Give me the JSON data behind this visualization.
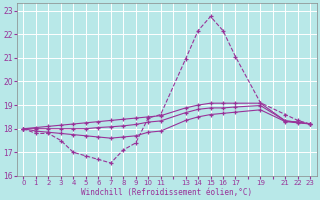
{
  "xlabel": "Windchill (Refroidissement éolien,°C)",
  "bg_color": "#b8e8e8",
  "grid_color": "#ffffff",
  "line_color": "#993399",
  "xlim": [
    -0.5,
    23.5
  ],
  "ylim": [
    16,
    23.3
  ],
  "xtick_labels": [
    "0",
    "1",
    "2",
    "3",
    "4",
    "5",
    "6",
    "7",
    "8",
    "9",
    "1011",
    "",
    "13141516",
    "",
    "",
    "",
    "17",
    "",
    "19",
    "",
    "2122",
    "",
    "23"
  ],
  "yticks": [
    16,
    17,
    18,
    19,
    20,
    21,
    22,
    23
  ],
  "series": [
    {
      "x": [
        0,
        1,
        2,
        3,
        4,
        5,
        6,
        7,
        8,
        9,
        10,
        11,
        13,
        14,
        15,
        16,
        17,
        19,
        21,
        22,
        23
      ],
      "y": [
        18.0,
        17.8,
        17.8,
        17.5,
        17.0,
        16.85,
        16.7,
        16.55,
        17.1,
        17.4,
        18.45,
        18.6,
        20.95,
        22.15,
        22.75,
        22.15,
        21.05,
        19.1,
        18.6,
        18.35,
        18.2
      ],
      "linestyle": "--"
    },
    {
      "x": [
        0,
        1,
        2,
        3,
        4,
        5,
        6,
        7,
        8,
        9,
        10,
        11,
        13,
        14,
        15,
        16,
        17,
        19,
        21,
        22,
        23
      ],
      "y": [
        18.0,
        17.9,
        17.85,
        17.8,
        17.75,
        17.7,
        17.65,
        17.6,
        17.65,
        17.7,
        17.85,
        17.9,
        18.35,
        18.5,
        18.6,
        18.65,
        18.7,
        18.8,
        18.3,
        18.25,
        18.2
      ],
      "linestyle": "-"
    },
    {
      "x": [
        0,
        1,
        2,
        3,
        4,
        5,
        6,
        7,
        8,
        9,
        10,
        11,
        13,
        14,
        15,
        16,
        17,
        19,
        21,
        22,
        23
      ],
      "y": [
        18.0,
        18.0,
        18.0,
        18.0,
        18.0,
        18.0,
        18.05,
        18.08,
        18.12,
        18.18,
        18.28,
        18.33,
        18.68,
        18.82,
        18.88,
        18.88,
        18.92,
        18.98,
        18.33,
        18.28,
        18.2
      ],
      "linestyle": "-"
    },
    {
      "x": [
        0,
        1,
        2,
        3,
        4,
        5,
        6,
        7,
        8,
        9,
        10,
        11,
        13,
        14,
        15,
        16,
        17,
        19,
        21,
        22,
        23
      ],
      "y": [
        18.0,
        18.05,
        18.1,
        18.15,
        18.2,
        18.25,
        18.3,
        18.35,
        18.4,
        18.45,
        18.5,
        18.55,
        18.88,
        19.0,
        19.08,
        19.08,
        19.08,
        19.08,
        18.33,
        18.28,
        18.2
      ],
      "linestyle": "-"
    }
  ]
}
